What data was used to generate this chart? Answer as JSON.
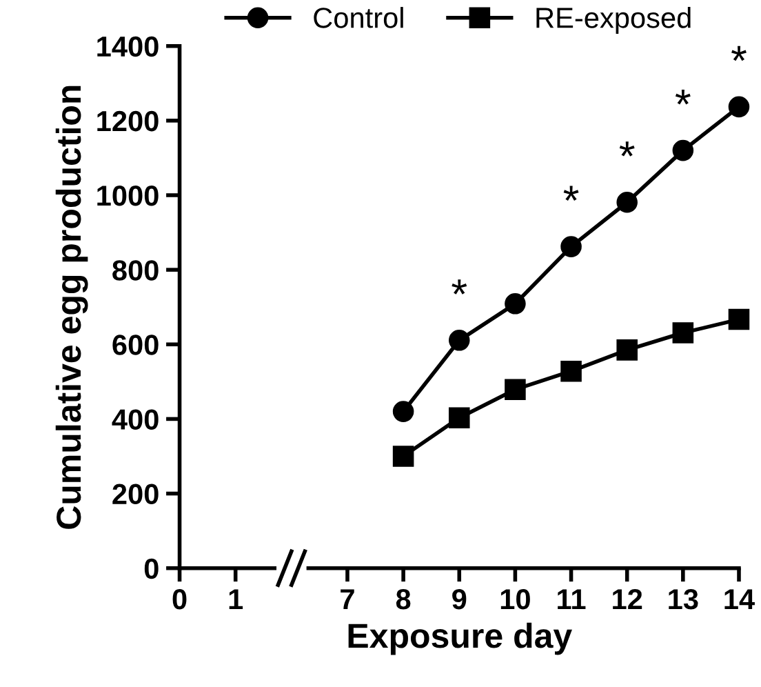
{
  "chart_data": {
    "type": "line",
    "xlabel": "Exposure day",
    "ylabel": "Cumulative egg production",
    "categories": [
      "0",
      "1",
      null,
      "7",
      "8",
      "9",
      "10",
      "11",
      "12",
      "13",
      "14"
    ],
    "series": [
      {
        "name": "Control",
        "color": "#000000",
        "marker": "circle",
        "values": [
          null,
          null,
          null,
          null,
          420,
          611,
          709,
          862,
          981,
          1120,
          1237
        ]
      },
      {
        "name": "RE-exposed",
        "color": "#000000",
        "marker": "square",
        "values": [
          null,
          null,
          null,
          null,
          300,
          403,
          479,
          528,
          585,
          631,
          667
        ]
      }
    ],
    "ylim": [
      0,
      1400
    ],
    "yticks": [
      0,
      200,
      400,
      600,
      800,
      1000,
      1200,
      1400
    ],
    "annotations": [
      {
        "text": "*",
        "x": "9",
        "y": 611
      },
      {
        "text": "*",
        "x": "11",
        "y": 862
      },
      {
        "text": "*",
        "x": "12",
        "y": 981
      },
      {
        "text": "*",
        "x": "13",
        "y": 1120
      },
      {
        "text": "*",
        "x": "14",
        "y": 1237
      }
    ],
    "legend": "top",
    "grid": false,
    "line_style": "solid"
  }
}
